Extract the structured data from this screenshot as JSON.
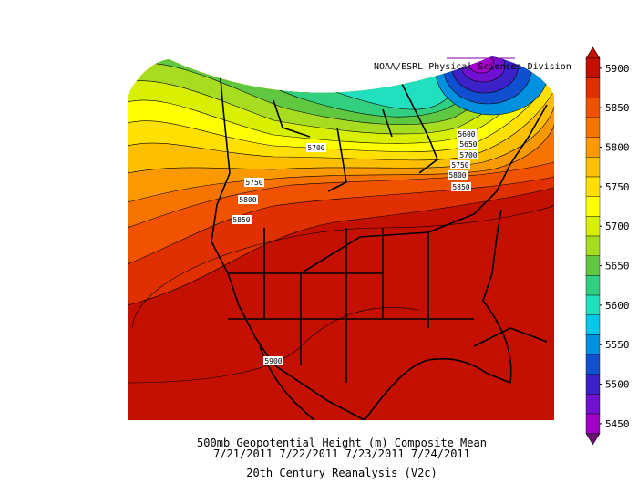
{
  "credit": "NOAA/ESRL Physical Sciences Division",
  "contour_labels": [
    "5600",
    "5650",
    "5700",
    "5750",
    "5800",
    "5850",
    "5700",
    "5750",
    "5800",
    "5850",
    "5900"
  ],
  "colorbar": {
    "labels": [
      5900,
      5850,
      5800,
      5750,
      5700,
      5650,
      5600,
      5550,
      5500,
      5450
    ],
    "colors": [
      "#c41000",
      "#e03000",
      "#f05200",
      "#f87400",
      "#fa9a00",
      "#fcc000",
      "#ffe000",
      "#ffff00",
      "#d8f000",
      "#a8dc20",
      "#60c840",
      "#30d080",
      "#20e0c0",
      "#00c8e8",
      "#0090e0",
      "#1050d0",
      "#3c20c8",
      "#7010d0",
      "#a000c8",
      "#c800c0"
    ],
    "top_color": "#c41000",
    "bottom_color": "#6a1070"
  },
  "title": {
    "line1": "500mb Geopotential Height (m) Composite Mean",
    "line2": "7/21/2011 7/22/2011 7/23/2011 7/24/2011",
    "line3": "20th Century Reanalysis (V2c)"
  }
}
